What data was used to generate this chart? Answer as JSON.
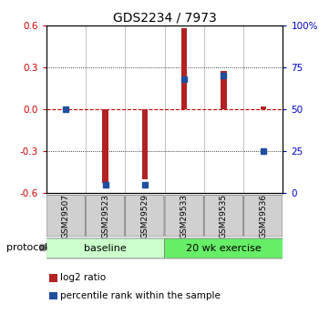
{
  "title": "GDS2234 / 7973",
  "samples": [
    "GSM29507",
    "GSM29523",
    "GSM29529",
    "GSM29533",
    "GSM29535",
    "GSM29536"
  ],
  "log2_ratio": [
    0.0,
    -0.53,
    -0.5,
    0.58,
    0.27,
    0.02
  ],
  "pct_rank": [
    50,
    5,
    5,
    68,
    70,
    25
  ],
  "ylim_left": [
    -0.6,
    0.6
  ],
  "ylim_right": [
    0,
    100
  ],
  "yticks_left": [
    -0.6,
    -0.3,
    0.0,
    0.3,
    0.6
  ],
  "yticks_right": [
    0,
    25,
    50,
    75,
    100
  ],
  "ytick_labels_right": [
    "0",
    "25",
    "50",
    "75",
    "100%"
  ],
  "bar_color": "#b22222",
  "dot_color": "#1f4e9e",
  "baseline_label": "baseline",
  "exercise_label": "20 wk exercise",
  "protocol_label": "protocol",
  "legend_red_label": "log2 ratio",
  "legend_blue_label": "percentile rank within the sample",
  "bg_color": "#ffffff",
  "plot_bg": "#ffffff",
  "zero_line_color": "#cc0000",
  "baseline_color": "#ccffcc",
  "exercise_color": "#66ee66",
  "sample_box_color": "#d0d0d0",
  "tick_label_color_left": "#cc0000",
  "tick_label_color_right": "#0000cc",
  "n_baseline": 3,
  "n_exercise": 3
}
